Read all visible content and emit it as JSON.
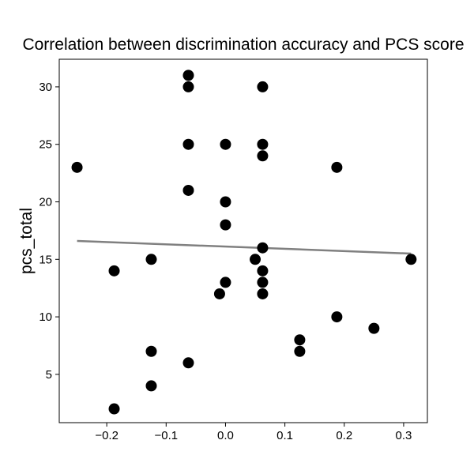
{
  "chart_data": {
    "type": "scatter",
    "title": "Correlation between discrimination accuracy and PCS score",
    "xlabel": "",
    "ylabel": "pcs_total",
    "xlim": [
      -0.28,
      0.34
    ],
    "ylim": [
      0.8,
      32.4
    ],
    "xticks": [
      -0.2,
      -0.1,
      0.0,
      0.1,
      0.2,
      0.3
    ],
    "xtick_labels": [
      "−0.2",
      "−0.1",
      "0.0",
      "0.1",
      "0.2",
      "0.3"
    ],
    "yticks": [
      5,
      10,
      15,
      20,
      25,
      30
    ],
    "ytick_labels": [
      "5",
      "10",
      "15",
      "20",
      "25",
      "30"
    ],
    "grid": false,
    "point_color": "#000000",
    "trend_color": "#808080",
    "points": [
      {
        "x": -0.0625,
        "y": 31
      },
      {
        "x": -0.0625,
        "y": 30
      },
      {
        "x": 0.0625,
        "y": 30
      },
      {
        "x": -0.0625,
        "y": 25
      },
      {
        "x": 0.0,
        "y": 25
      },
      {
        "x": 0.0625,
        "y": 25
      },
      {
        "x": 0.0625,
        "y": 24
      },
      {
        "x": -0.25,
        "y": 23
      },
      {
        "x": 0.1875,
        "y": 23
      },
      {
        "x": -0.0625,
        "y": 21
      },
      {
        "x": 0.0,
        "y": 20
      },
      {
        "x": 0.0,
        "y": 18
      },
      {
        "x": 0.0625,
        "y": 16
      },
      {
        "x": -0.125,
        "y": 15
      },
      {
        "x": 0.05,
        "y": 15
      },
      {
        "x": 0.3125,
        "y": 15
      },
      {
        "x": -0.1875,
        "y": 14
      },
      {
        "x": 0.0625,
        "y": 14
      },
      {
        "x": 0.0,
        "y": 13
      },
      {
        "x": 0.0625,
        "y": 13
      },
      {
        "x": -0.01,
        "y": 12
      },
      {
        "x": 0.0625,
        "y": 12
      },
      {
        "x": 0.1875,
        "y": 10
      },
      {
        "x": 0.25,
        "y": 9
      },
      {
        "x": 0.125,
        "y": 8
      },
      {
        "x": -0.125,
        "y": 7
      },
      {
        "x": 0.125,
        "y": 7
      },
      {
        "x": -0.0625,
        "y": 6
      },
      {
        "x": -0.125,
        "y": 4
      },
      {
        "x": -0.1875,
        "y": 2
      }
    ],
    "trend_line": {
      "x": [
        -0.25,
        0.3125
      ],
      "y": [
        16.6,
        15.5
      ]
    }
  }
}
